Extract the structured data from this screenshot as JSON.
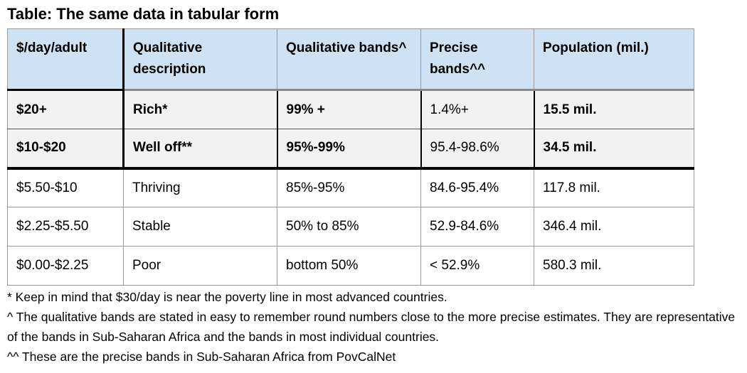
{
  "title": "Table: The same data in tabular form",
  "table": {
    "headers": [
      "$/day/adult",
      "Qualitative description",
      "Qualitative bands^",
      "Precise bands^^",
      "Population (mil.)"
    ],
    "rows": [
      [
        "$20+",
        "Rich*",
        "99% +",
        "1.4%+",
        "15.5 mil."
      ],
      [
        "$10-$20",
        "Well off**",
        "95%-99%",
        "95.4-98.6%",
        "34.5 mil."
      ],
      [
        "$5.50-$10",
        "Thriving",
        "85%-95%",
        "84.6-95.4%",
        "117.8 mil."
      ],
      [
        "$2.25-$5.50",
        "Stable",
        "50% to 85%",
        "52.9-84.6%",
        "346.4 mil."
      ],
      [
        "$0.00-$2.25",
        "Poor",
        "bottom 50%",
        "< 52.9%",
        "580.3 mil."
      ]
    ],
    "header_fill": "#cfe2f3",
    "highlight_fill": "#f2f2f2"
  },
  "notes": [
    "* Keep in mind that $30/day is near the poverty line in most advanced countries.",
    "^ The qualitative bands are stated in easy to remember round numbers close to the more precise estimates. They are representative of the bands in Sub-Saharan Africa and the bands in most individual countries.",
    "^^ These are the precise bands in Sub-Saharan Africa from PovCalNet"
  ]
}
